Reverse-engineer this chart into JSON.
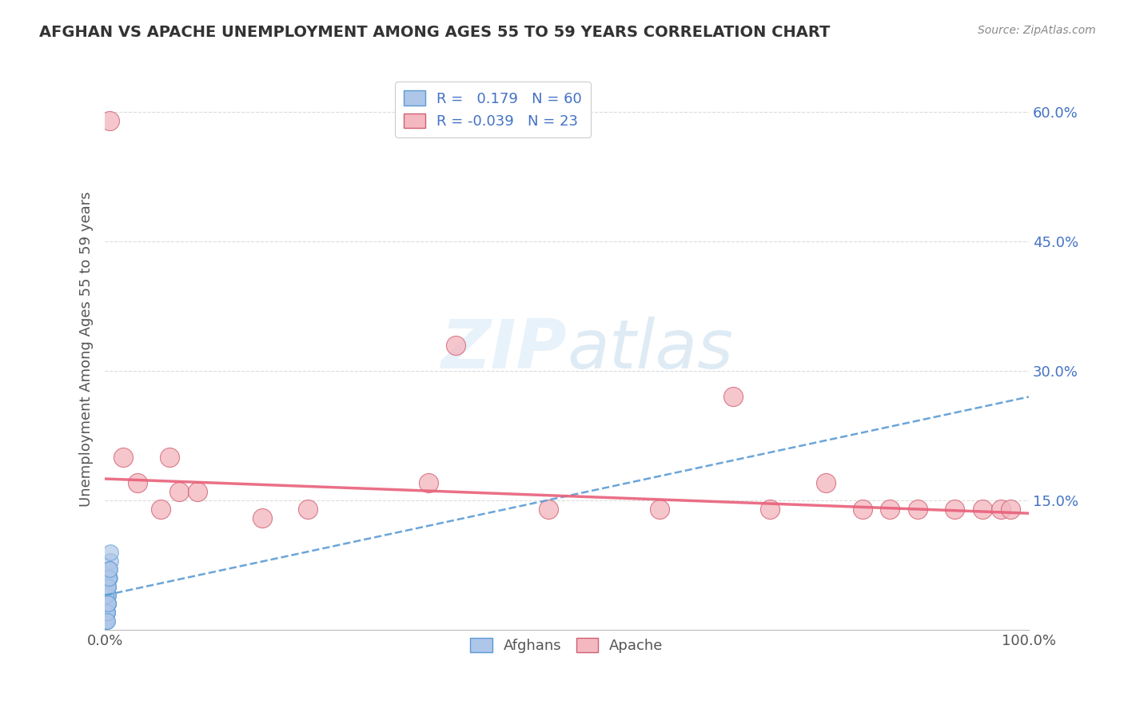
{
  "title": "AFGHAN VS APACHE UNEMPLOYMENT AMONG AGES 55 TO 59 YEARS CORRELATION CHART",
  "source": "Source: ZipAtlas.com",
  "ylabel": "Unemployment Among Ages 55 to 59 years",
  "xlim": [
    0.0,
    1.0
  ],
  "ylim": [
    0.0,
    0.65
  ],
  "ytick_positions": [
    0.0,
    0.15,
    0.3,
    0.45,
    0.6
  ],
  "yticklabels": [
    "",
    "15.0%",
    "30.0%",
    "45.0%",
    "60.0%"
  ],
  "afghans_R": 0.179,
  "afghans_N": 60,
  "apache_R": -0.039,
  "apache_N": 23,
  "afghans_color": "#aec6e8",
  "apache_color": "#f4b8c1",
  "afghans_line_color": "#5b9bd5",
  "apache_line_color": "#e8607a",
  "afghans_x": [
    0.001,
    0.002,
    0.001,
    0.003,
    0.002,
    0.001,
    0.002,
    0.003,
    0.001,
    0.002,
    0.001,
    0.003,
    0.002,
    0.001,
    0.002,
    0.001,
    0.003,
    0.002,
    0.001,
    0.002,
    0.003,
    0.001,
    0.002,
    0.001,
    0.003,
    0.002,
    0.001,
    0.002,
    0.003,
    0.001,
    0.002,
    0.001,
    0.003,
    0.002,
    0.001,
    0.002,
    0.003,
    0.001,
    0.002,
    0.001,
    0.003,
    0.002,
    0.001,
    0.002,
    0.003,
    0.001,
    0.002,
    0.001,
    0.003,
    0.002,
    0.004,
    0.005,
    0.003,
    0.006,
    0.004,
    0.005,
    0.003,
    0.004,
    0.006,
    0.005
  ],
  "afghans_y": [
    0.02,
    0.04,
    0.01,
    0.05,
    0.03,
    0.02,
    0.04,
    0.03,
    0.01,
    0.02,
    0.04,
    0.03,
    0.05,
    0.02,
    0.03,
    0.01,
    0.04,
    0.02,
    0.03,
    0.04,
    0.06,
    0.02,
    0.03,
    0.01,
    0.05,
    0.03,
    0.02,
    0.04,
    0.03,
    0.01,
    0.05,
    0.02,
    0.04,
    0.03,
    0.01,
    0.02,
    0.04,
    0.03,
    0.05,
    0.02,
    0.03,
    0.01,
    0.04,
    0.02,
    0.03,
    0.05,
    0.02,
    0.04,
    0.03,
    0.01,
    0.07,
    0.06,
    0.05,
    0.08,
    0.06,
    0.07,
    0.05,
    0.06,
    0.09,
    0.07
  ],
  "afghans_line_x0": 0.0,
  "afghans_line_y0": 0.04,
  "afghans_line_x1": 1.0,
  "afghans_line_y1": 0.27,
  "apache_x": [
    0.005,
    0.02,
    0.035,
    0.06,
    0.07,
    0.08,
    0.1,
    0.17,
    0.22,
    0.35,
    0.38,
    0.48,
    0.6,
    0.68,
    0.72,
    0.78,
    0.82,
    0.85,
    0.88,
    0.92,
    0.95,
    0.97,
    0.98
  ],
  "apache_y": [
    0.59,
    0.2,
    0.17,
    0.14,
    0.2,
    0.16,
    0.16,
    0.13,
    0.14,
    0.17,
    0.33,
    0.14,
    0.14,
    0.27,
    0.14,
    0.17,
    0.14,
    0.14,
    0.14,
    0.14,
    0.14,
    0.14,
    0.14
  ],
  "apache_line_x0": 0.0,
  "apache_line_y0": 0.175,
  "apache_line_x1": 1.0,
  "apache_line_y1": 0.135
}
